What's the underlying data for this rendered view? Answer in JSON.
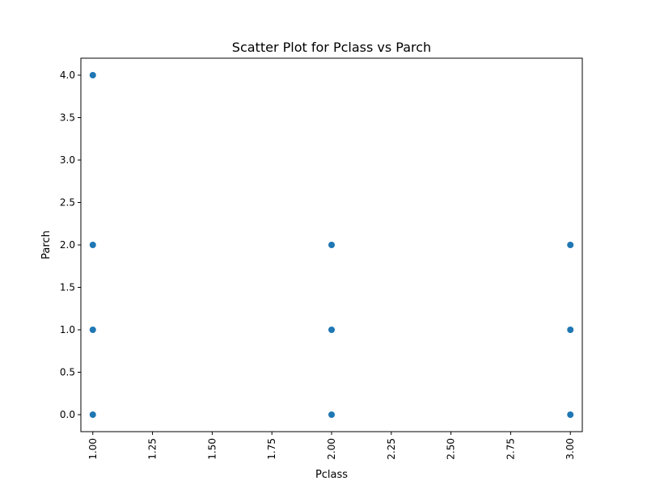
{
  "chart_data": {
    "type": "scatter",
    "title": "Scatter Plot for Pclass vs Parch",
    "xlabel": "Pclass",
    "ylabel": "Parch",
    "xlim": [
      0.95,
      3.05
    ],
    "ylim": [
      -0.2,
      4.2
    ],
    "xticks": [
      1.0,
      1.25,
      1.5,
      1.75,
      2.0,
      2.25,
      2.5,
      2.75,
      3.0
    ],
    "xtick_labels": [
      "1.00",
      "1.25",
      "1.50",
      "1.75",
      "2.00",
      "2.25",
      "2.50",
      "2.75",
      "3.00"
    ],
    "yticks": [
      0.0,
      0.5,
      1.0,
      1.5,
      2.0,
      2.5,
      3.0,
      3.5,
      4.0
    ],
    "ytick_labels": [
      "0.0",
      "0.5",
      "1.0",
      "1.5",
      "2.0",
      "2.5",
      "3.0",
      "3.5",
      "4.0"
    ],
    "grid": false,
    "point_color": "#1f77b4",
    "points": [
      {
        "x": 1,
        "y": 4
      },
      {
        "x": 1,
        "y": 2
      },
      {
        "x": 1,
        "y": 1
      },
      {
        "x": 1,
        "y": 0
      },
      {
        "x": 2,
        "y": 2
      },
      {
        "x": 2,
        "y": 1
      },
      {
        "x": 2,
        "y": 0
      },
      {
        "x": 3,
        "y": 2
      },
      {
        "x": 3,
        "y": 1
      },
      {
        "x": 3,
        "y": 0
      }
    ]
  }
}
